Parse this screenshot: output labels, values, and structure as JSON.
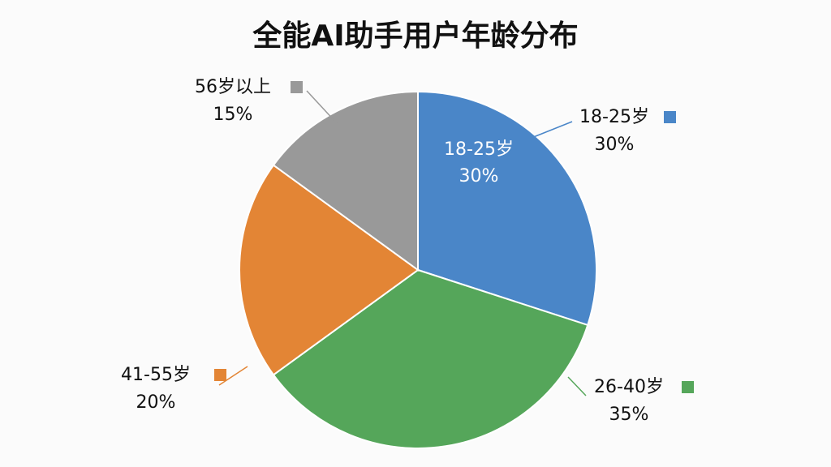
{
  "chart_data": {
    "type": "pie",
    "title": "全能AI助手用户年龄分布",
    "categories": [
      "18-25岁",
      "26-40岁",
      "41-55岁",
      "56岁以上"
    ],
    "values": [
      30,
      35,
      20,
      15
    ],
    "value_labels": [
      "30%",
      "35%",
      "20%",
      "15%"
    ],
    "colors": [
      "#4a86c8",
      "#55a65a",
      "#e38535",
      "#999999"
    ]
  }
}
